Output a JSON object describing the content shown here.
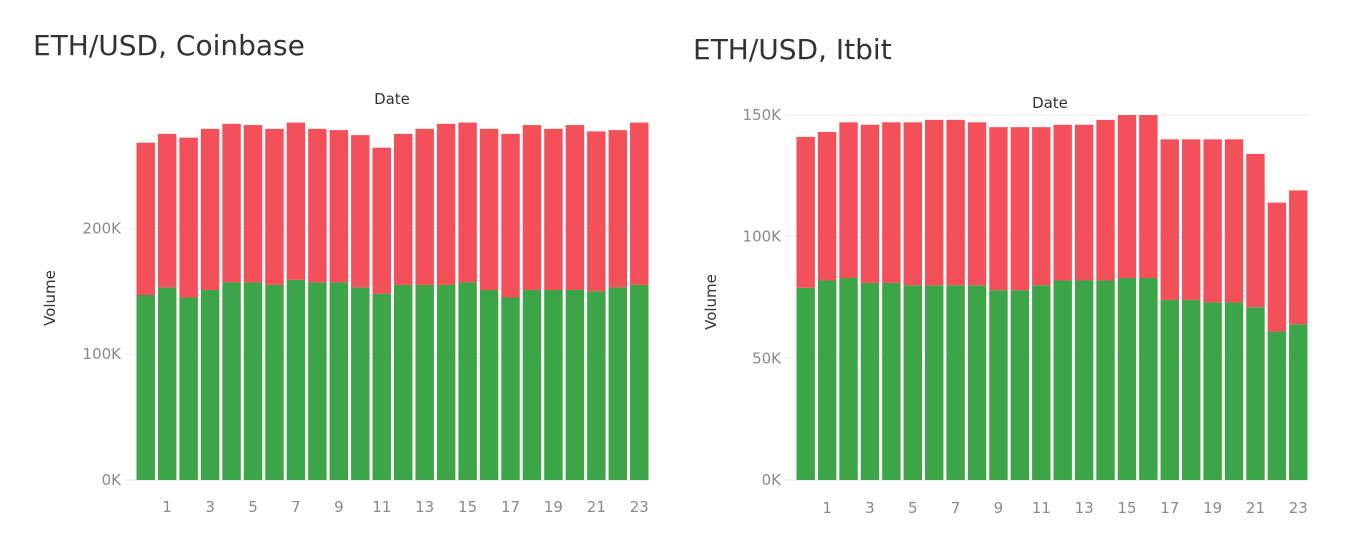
{
  "colors": {
    "upper_segment": "#f4505a",
    "lower_segment": "#3ba547"
  },
  "chart_data": [
    {
      "type": "bar",
      "stacked": true,
      "title": "ETH/USD, Coinbase",
      "xlabel": "Date",
      "ylabel": "Volume",
      "categories": [
        0,
        1,
        2,
        3,
        4,
        5,
        6,
        7,
        8,
        9,
        10,
        11,
        12,
        13,
        14,
        15,
        16,
        17,
        18,
        19,
        20,
        21,
        22,
        23
      ],
      "x_tick_labels": [
        "1",
        "3",
        "5",
        "7",
        "9",
        "11",
        "13",
        "15",
        "17",
        "19",
        "21",
        "23"
      ],
      "y_ticks": [
        0,
        100000,
        200000
      ],
      "y_tick_labels": [
        "0K",
        "100K",
        "200K"
      ],
      "ylim": [
        0,
        290000
      ],
      "series": [
        {
          "name": "lower",
          "color_key": "lower_segment",
          "values": [
            147000,
            153000,
            145000,
            151000,
            157000,
            157000,
            155000,
            159000,
            157000,
            157000,
            153000,
            148000,
            155000,
            155000,
            155000,
            157000,
            151000,
            145000,
            151000,
            151000,
            151000,
            150000,
            153000,
            155000
          ]
        },
        {
          "name": "upper",
          "color_key": "upper_segment",
          "values": [
            121000,
            122000,
            127000,
            128000,
            126000,
            125000,
            124000,
            125000,
            122000,
            121000,
            121000,
            116000,
            120000,
            124000,
            128000,
            127000,
            128000,
            130000,
            131000,
            128000,
            131000,
            127000,
            125000,
            129000
          ]
        }
      ]
    },
    {
      "type": "bar",
      "stacked": true,
      "title": "ETH/USD, Itbit",
      "xlabel": "Date",
      "ylabel": "Volume",
      "categories": [
        0,
        1,
        2,
        3,
        4,
        5,
        6,
        7,
        8,
        9,
        10,
        11,
        12,
        13,
        14,
        15,
        16,
        17,
        18,
        19,
        20,
        21,
        22,
        23
      ],
      "x_tick_labels": [
        "1",
        "3",
        "5",
        "7",
        "9",
        "11",
        "13",
        "15",
        "17",
        "19",
        "21",
        "23"
      ],
      "y_ticks": [
        0,
        50000,
        100000,
        150000
      ],
      "y_tick_labels": [
        "0K",
        "50K",
        "100K",
        "150K"
      ],
      "ylim": [
        0,
        150000
      ],
      "series": [
        {
          "name": "lower",
          "color_key": "lower_segment",
          "values": [
            79000,
            82000,
            83000,
            81000,
            81000,
            80000,
            80000,
            80000,
            80000,
            78000,
            78000,
            80000,
            82000,
            82000,
            82000,
            83000,
            83000,
            74000,
            74000,
            73000,
            73000,
            71000,
            61000,
            64000
          ]
        },
        {
          "name": "upper",
          "color_key": "upper_segment",
          "values": [
            62000,
            61000,
            64000,
            65000,
            66000,
            67000,
            68000,
            68000,
            67000,
            67000,
            67000,
            65000,
            64000,
            64000,
            66000,
            67000,
            67000,
            66000,
            66000,
            67000,
            67000,
            63000,
            53000,
            55000
          ]
        }
      ]
    }
  ]
}
